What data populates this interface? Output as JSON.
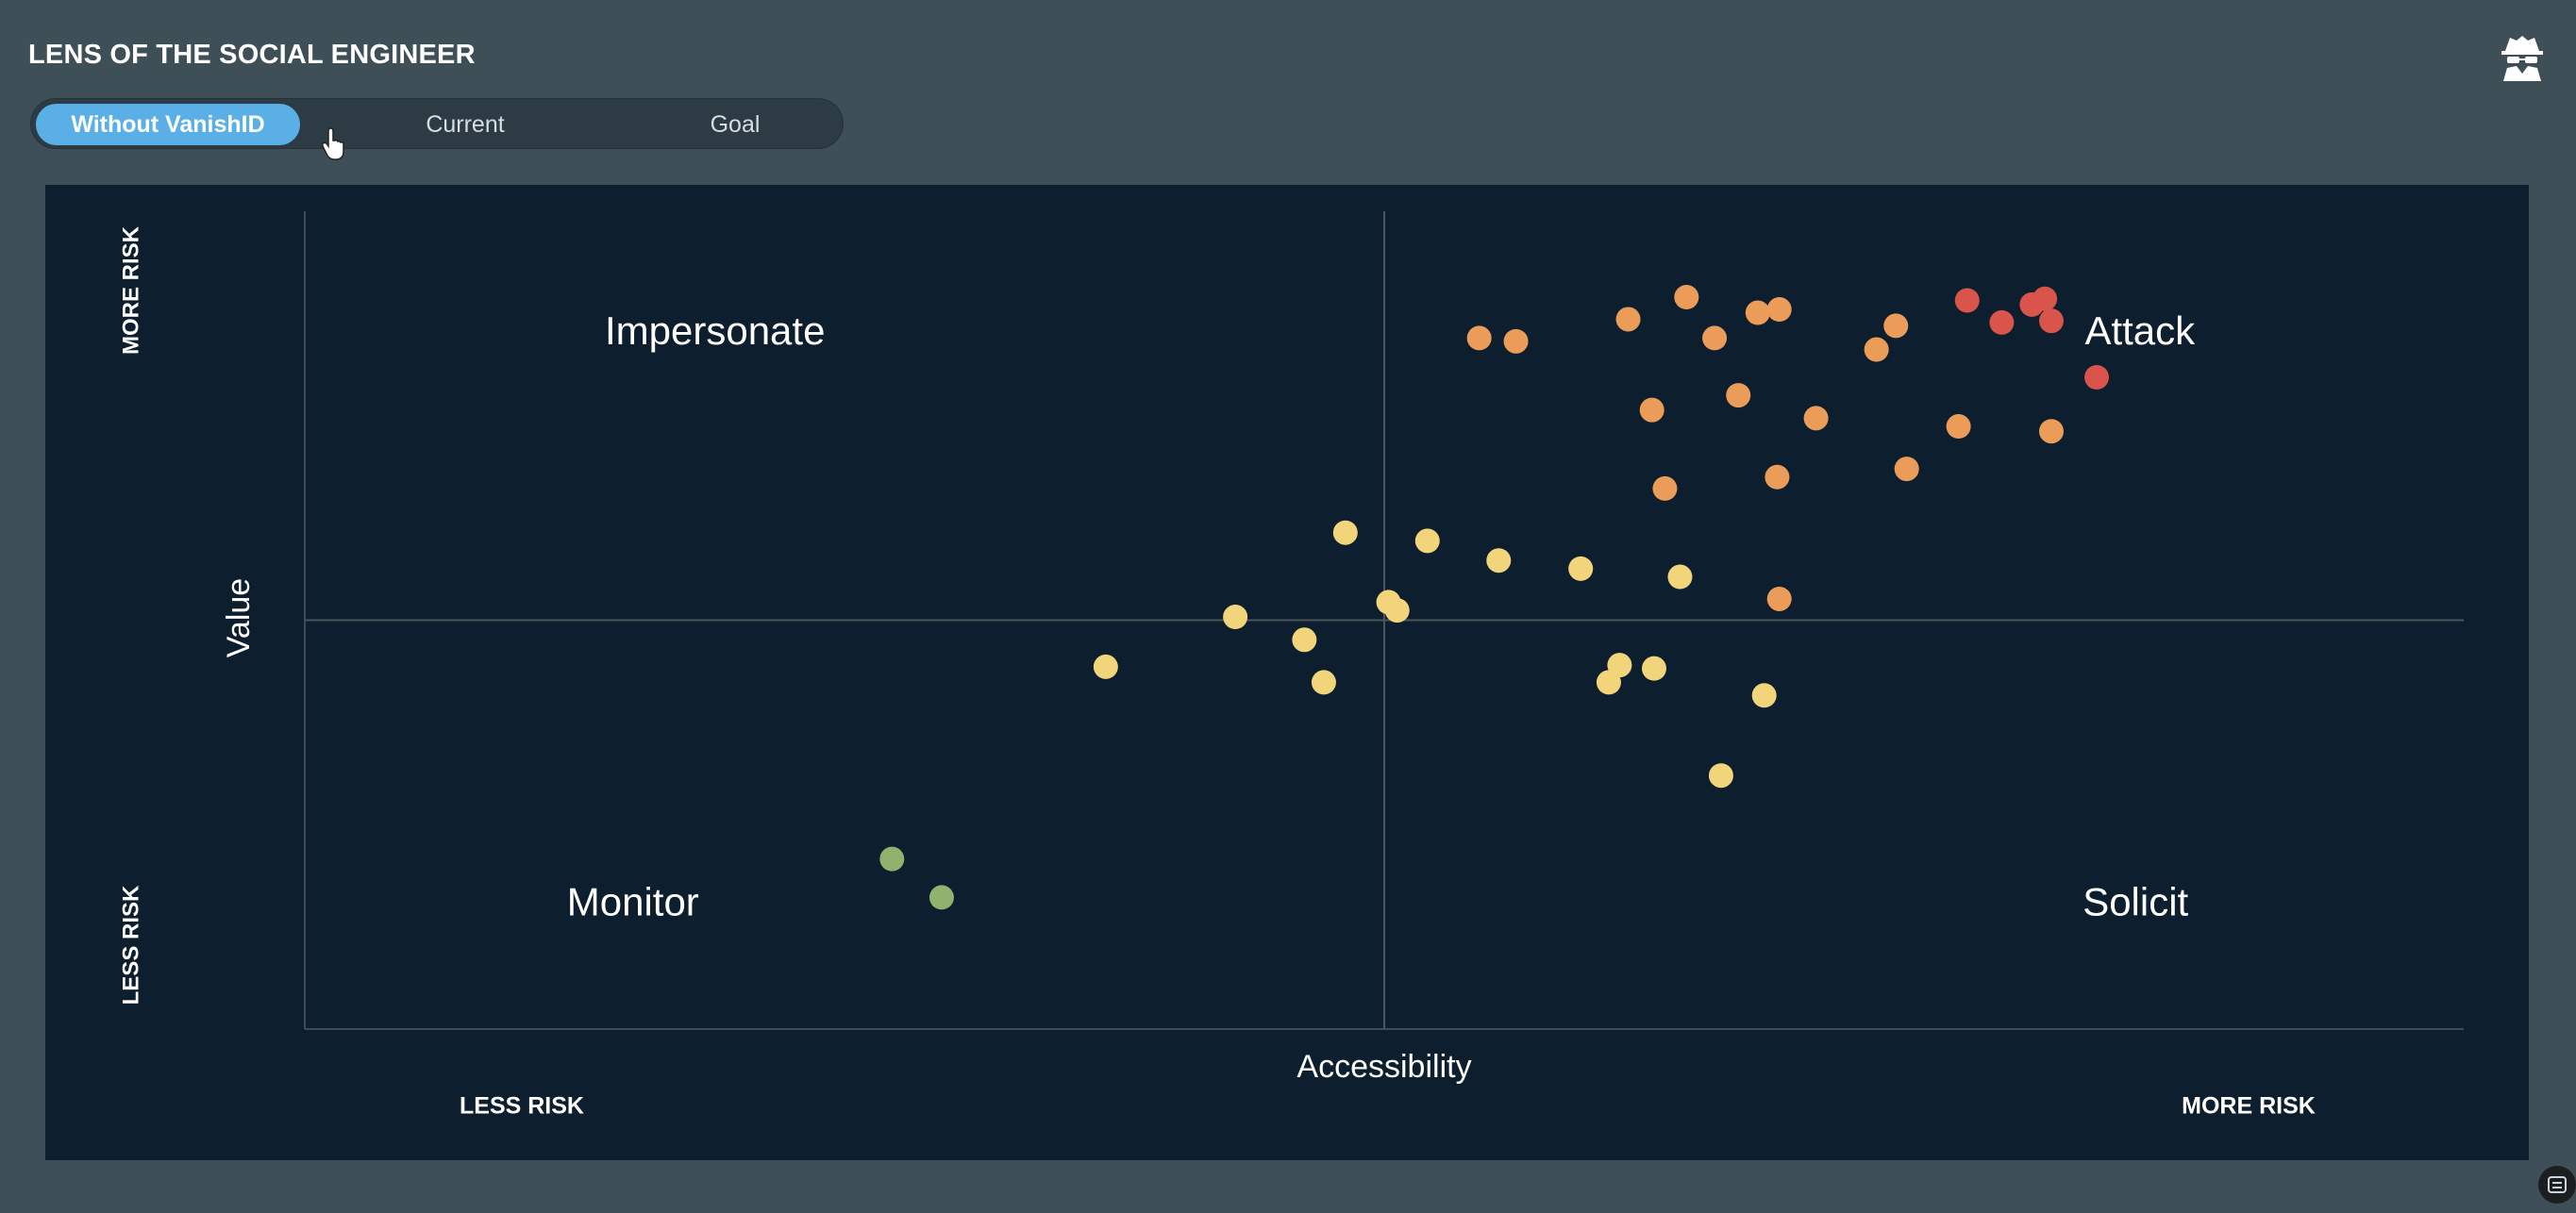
{
  "header": {
    "title": "LENS OF THE SOCIAL ENGINEER",
    "icon": "spy-icon"
  },
  "toggle": {
    "options": [
      "Without VanishID",
      "Current",
      "Goal"
    ],
    "active_index": 0
  },
  "chart_data": {
    "type": "scatter",
    "xlabel": "Accessibility",
    "ylabel": "Value",
    "x_axis_left_label": "LESS RISK",
    "x_axis_right_label": "MORE RISK",
    "y_axis_top_label": "MORE RISK",
    "y_axis_bottom_label": "LESS RISK",
    "xlim": [
      0,
      100
    ],
    "ylim": [
      0,
      100
    ],
    "grid": false,
    "quadrant_dividers": {
      "x": 50,
      "y": 50
    },
    "quadrants": [
      {
        "label": "Impersonate",
        "x": 19,
        "y": 85
      },
      {
        "label": "Attack",
        "x": 85,
        "y": 85
      },
      {
        "label": "Monitor",
        "x": 15.2,
        "y": 15.2
      },
      {
        "label": "Solicit",
        "x": 84.8,
        "y": 15.2
      }
    ],
    "colors": {
      "green": "#8fb26d",
      "yellow": "#f2d47a",
      "orange": "#eb9c58",
      "red": "#d9544a"
    },
    "points": [
      {
        "x": 27.2,
        "y": 20.8,
        "color": "green"
      },
      {
        "x": 29.5,
        "y": 16.1,
        "color": "green"
      },
      {
        "x": 37.1,
        "y": 44.3,
        "color": "yellow"
      },
      {
        "x": 43.1,
        "y": 50.4,
        "color": "yellow"
      },
      {
        "x": 46.3,
        "y": 47.6,
        "color": "yellow"
      },
      {
        "x": 47.2,
        "y": 42.4,
        "color": "yellow"
      },
      {
        "x": 48.2,
        "y": 60.7,
        "color": "yellow"
      },
      {
        "x": 50.2,
        "y": 52.2,
        "color": "yellow"
      },
      {
        "x": 50.6,
        "y": 51.2,
        "color": "yellow"
      },
      {
        "x": 52.0,
        "y": 59.7,
        "color": "yellow"
      },
      {
        "x": 55.3,
        "y": 57.3,
        "color": "yellow"
      },
      {
        "x": 59.1,
        "y": 56.3,
        "color": "yellow"
      },
      {
        "x": 60.4,
        "y": 42.4,
        "color": "yellow"
      },
      {
        "x": 60.9,
        "y": 44.5,
        "color": "yellow"
      },
      {
        "x": 62.5,
        "y": 44.1,
        "color": "yellow"
      },
      {
        "x": 63.7,
        "y": 55.3,
        "color": "yellow"
      },
      {
        "x": 65.6,
        "y": 31.0,
        "color": "yellow"
      },
      {
        "x": 67.6,
        "y": 40.8,
        "color": "yellow"
      },
      {
        "x": 54.4,
        "y": 84.5,
        "color": "orange"
      },
      {
        "x": 56.1,
        "y": 84.1,
        "color": "orange"
      },
      {
        "x": 61.3,
        "y": 86.8,
        "color": "orange"
      },
      {
        "x": 62.4,
        "y": 75.7,
        "color": "orange"
      },
      {
        "x": 63.0,
        "y": 66.1,
        "color": "orange"
      },
      {
        "x": 64.0,
        "y": 89.5,
        "color": "orange"
      },
      {
        "x": 65.3,
        "y": 84.5,
        "color": "orange"
      },
      {
        "x": 66.4,
        "y": 77.5,
        "color": "orange"
      },
      {
        "x": 67.3,
        "y": 87.6,
        "color": "orange"
      },
      {
        "x": 68.2,
        "y": 67.5,
        "color": "orange"
      },
      {
        "x": 68.3,
        "y": 52.6,
        "color": "orange"
      },
      {
        "x": 68.3,
        "y": 88.0,
        "color": "orange"
      },
      {
        "x": 70.0,
        "y": 74.7,
        "color": "orange"
      },
      {
        "x": 72.8,
        "y": 83.1,
        "color": "orange"
      },
      {
        "x": 73.7,
        "y": 86.0,
        "color": "orange"
      },
      {
        "x": 74.2,
        "y": 68.5,
        "color": "orange"
      },
      {
        "x": 76.6,
        "y": 73.7,
        "color": "orange"
      },
      {
        "x": 80.9,
        "y": 73.1,
        "color": "orange"
      },
      {
        "x": 77.0,
        "y": 89.1,
        "color": "red"
      },
      {
        "x": 78.6,
        "y": 86.4,
        "color": "red"
      },
      {
        "x": 80.0,
        "y": 88.6,
        "color": "red"
      },
      {
        "x": 80.6,
        "y": 89.3,
        "color": "red"
      },
      {
        "x": 80.9,
        "y": 86.6,
        "color": "red"
      },
      {
        "x": 83.0,
        "y": 79.7,
        "color": "red"
      }
    ]
  }
}
